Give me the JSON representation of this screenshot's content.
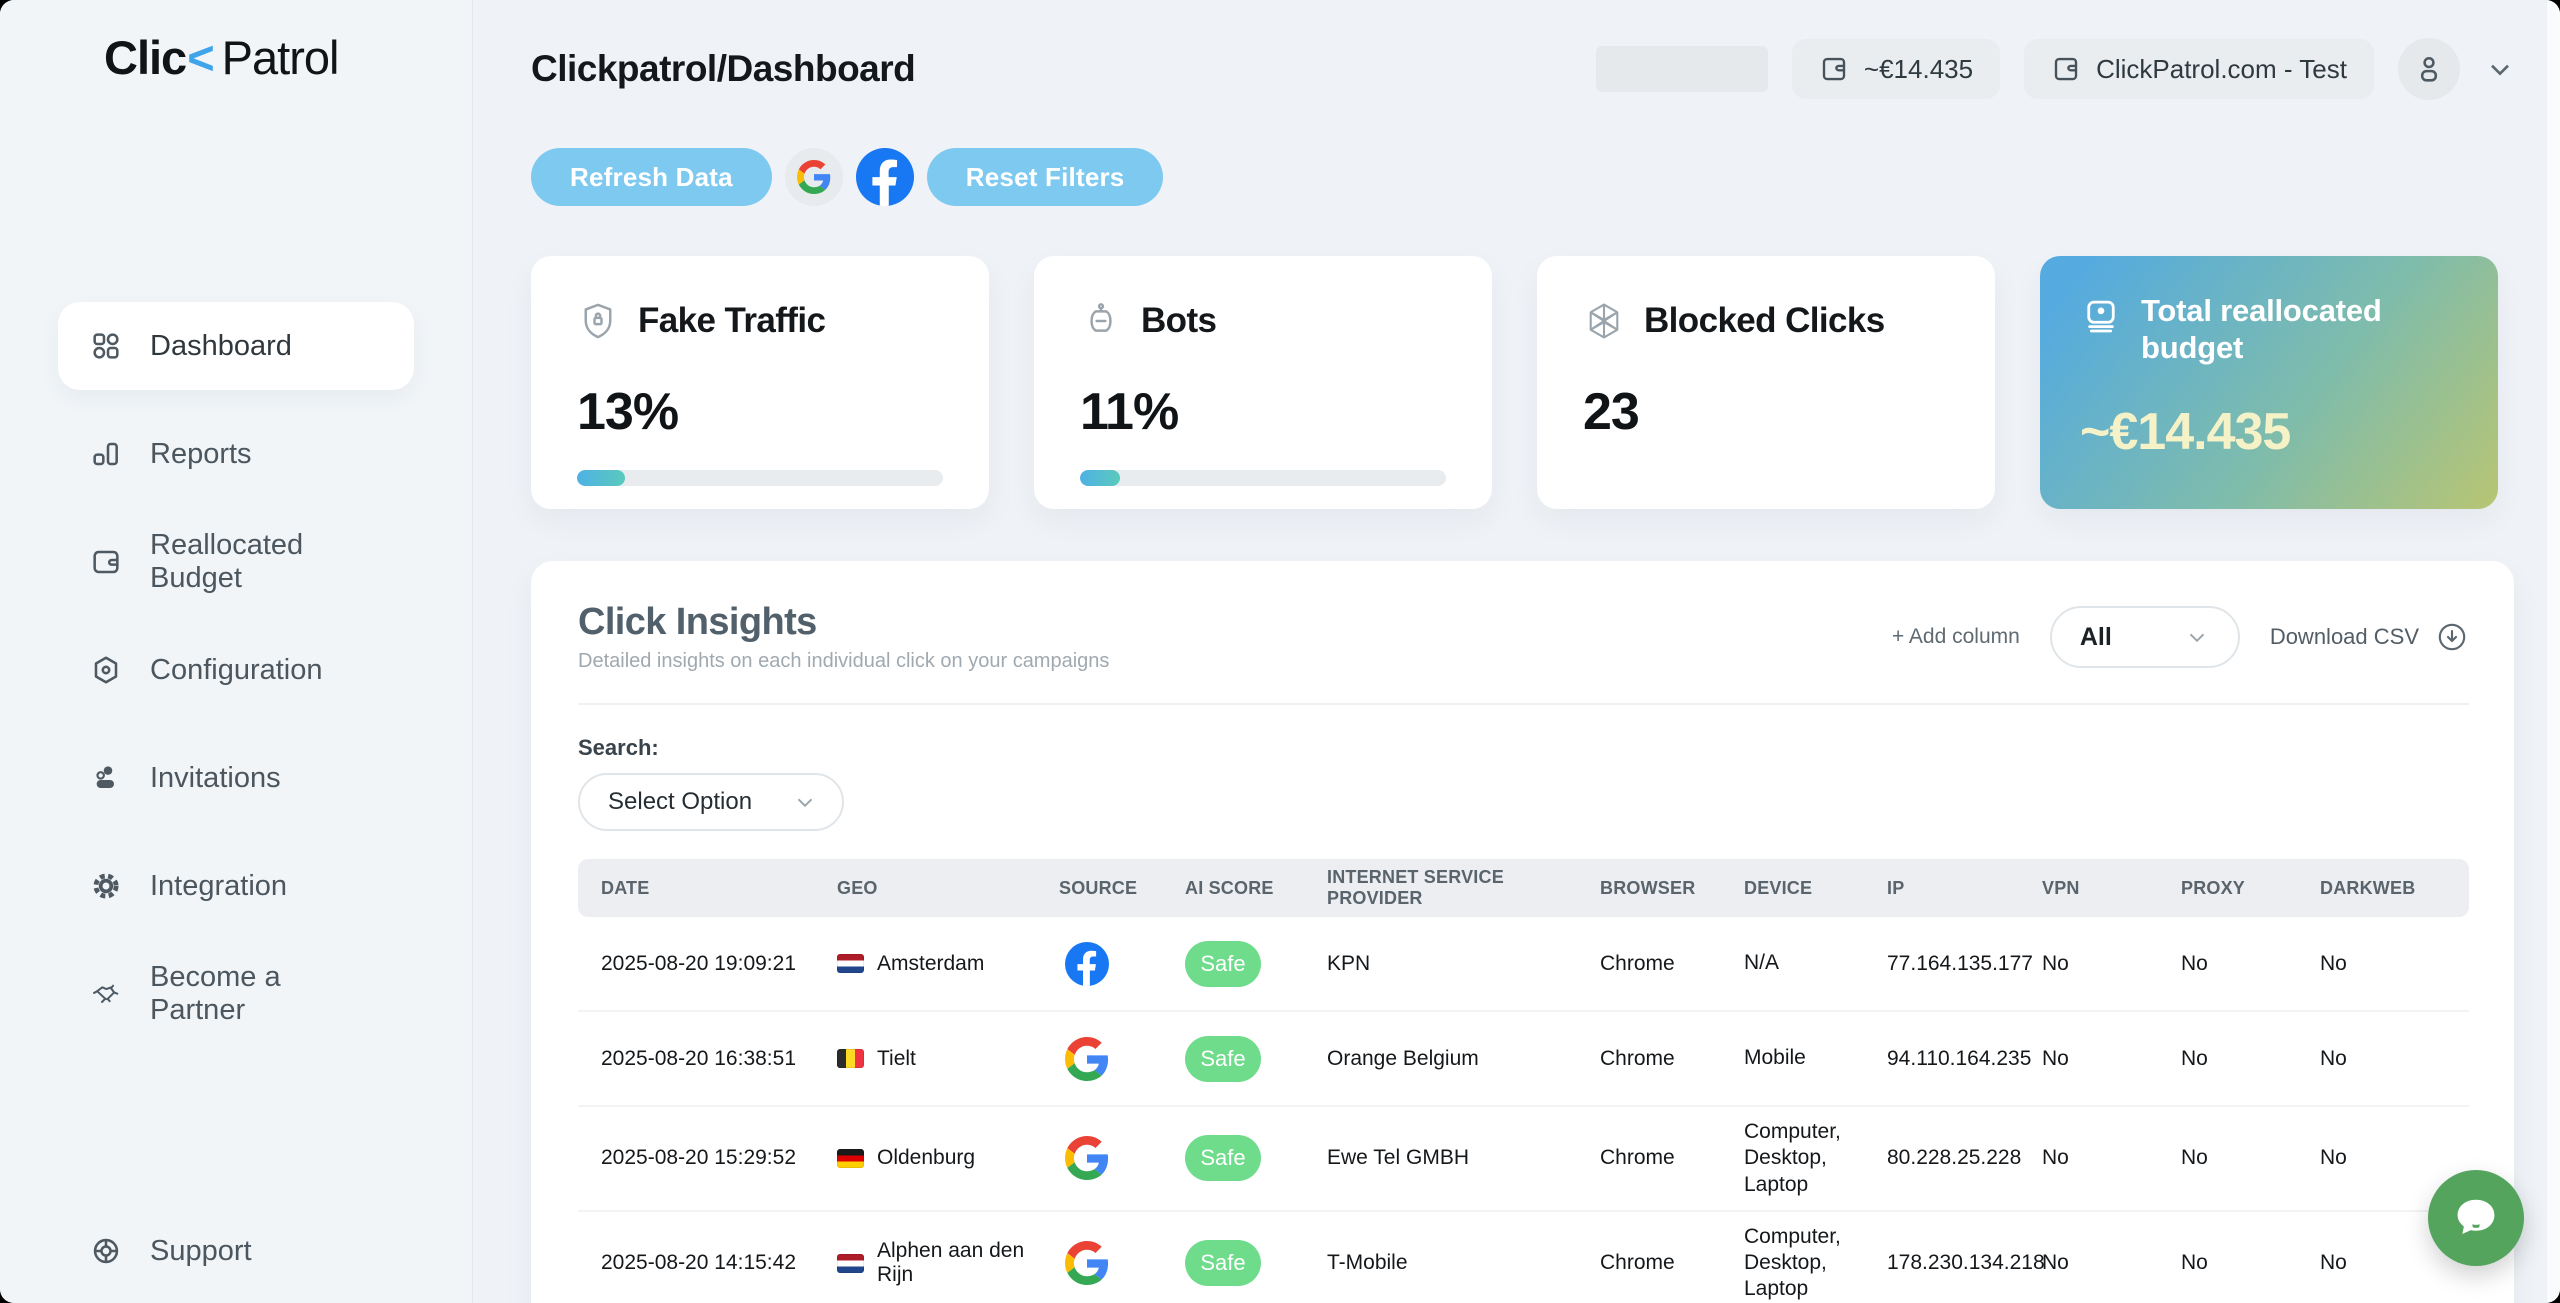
{
  "brand": {
    "name_part1": "Clic",
    "name_chevron": "<",
    "name_part2": "Patrol"
  },
  "sidebar": {
    "items": [
      {
        "label": "Dashboard",
        "icon": "grid-icon",
        "active": true
      },
      {
        "label": "Reports",
        "icon": "bar-chart-icon",
        "active": false
      },
      {
        "label": "Reallocated Budget",
        "icon": "wallet-icon",
        "active": false
      },
      {
        "label": "Configuration",
        "icon": "hexagon-settings-icon",
        "active": false
      },
      {
        "label": "Invitations",
        "icon": "user-icon",
        "active": false
      },
      {
        "label": "Integration",
        "icon": "gear-icon",
        "active": false
      },
      {
        "label": "Become a Partner",
        "icon": "handshake-icon",
        "active": false
      }
    ],
    "bottom_item": {
      "label": "Support",
      "icon": "lifebuoy-icon"
    }
  },
  "header": {
    "title": "Clickpatrol/Dashboard",
    "balance_pill": "~€14.435",
    "account_pill": "ClickPatrol.com - Test"
  },
  "toolbar": {
    "refresh_label": "Refresh Data",
    "reset_label": "Reset Filters",
    "google_icon": "google-filter-icon",
    "facebook_icon": "facebook-filter-icon"
  },
  "stats": [
    {
      "label": "Fake Traffic",
      "value": "13%",
      "progress": 13,
      "icon": "shield-lock-icon"
    },
    {
      "label": "Bots",
      "value": "11%",
      "progress": 11,
      "icon": "bot-icon"
    },
    {
      "label": "Blocked Clicks",
      "value": "23",
      "icon": "hexagon-web-icon"
    },
    {
      "label": "Total reallocated budget",
      "value": "~€14.435",
      "icon": "wallet-cash-icon"
    }
  ],
  "insights": {
    "title": "Click Insights",
    "subtitle": "Detailed insights on each individual click on your campaigns",
    "add_column_label": "+ Add column",
    "column_filter_value": "All",
    "download_label": "Download CSV",
    "search_label": "Search:",
    "select_placeholder": "Select Option",
    "table": {
      "columns": [
        "DATE",
        "GEO",
        "SOURCE",
        "AI SCORE",
        "INTERNET SERVICE PROVIDER",
        "BROWSER",
        "DEVICE",
        "IP",
        "VPN",
        "PROXY",
        "DARKWEB"
      ],
      "rows": [
        {
          "date": "2025-08-20 19:09:21",
          "city": "Amsterdam",
          "country": "nl",
          "source": "facebook",
          "ai_score": "Safe",
          "isp": "KPN",
          "browser": "Chrome",
          "device": "N/A",
          "ip": "77.164.135.177",
          "vpn": "No",
          "proxy": "No",
          "darkweb": "No"
        },
        {
          "date": "2025-08-20 16:38:51",
          "city": "Tielt",
          "country": "be",
          "source": "google",
          "ai_score": "Safe",
          "isp": "Orange Belgium",
          "browser": "Chrome",
          "device": "Mobile",
          "ip": "94.110.164.235",
          "vpn": "No",
          "proxy": "No",
          "darkweb": "No"
        },
        {
          "date": "2025-08-20 15:29:52",
          "city": "Oldenburg",
          "country": "de",
          "source": "google",
          "ai_score": "Safe",
          "isp": "Ewe Tel GMBH",
          "browser": "Chrome",
          "device": "Computer, Desktop, Laptop",
          "ip": "80.228.25.228",
          "vpn": "No",
          "proxy": "No",
          "darkweb": "No"
        },
        {
          "date": "2025-08-20 14:15:42",
          "city": "Alphen aan den Rijn",
          "country": "nl",
          "source": "google",
          "ai_score": "Safe",
          "isp": "T-Mobile",
          "browser": "Chrome",
          "device": "Computer, Desktop, Laptop",
          "ip": "178.230.134.218",
          "vpn": "No",
          "proxy": "No",
          "darkweb": "No"
        }
      ]
    }
  },
  "colors": {
    "accent_blue": "#7ec9f0",
    "facebook_blue": "#1877F2",
    "safe_green": "#6fdc8c",
    "gradient_from": "#55abdf",
    "gradient_to": "#b8c573",
    "chat_green": "#55a45e"
  }
}
